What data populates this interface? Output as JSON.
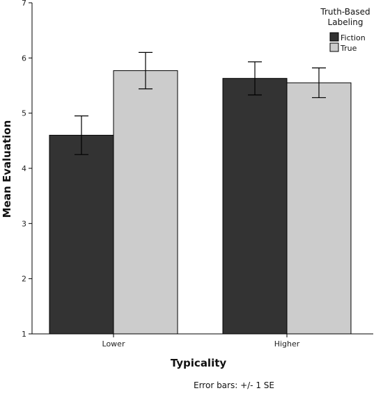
{
  "chart_data": {
    "type": "bar",
    "categories": [
      "Lower",
      "Higher"
    ],
    "series": [
      {
        "name": "Fiction",
        "values": [
          4.6,
          5.63
        ],
        "error": [
          0.35,
          0.3
        ],
        "color": "#333333"
      },
      {
        "name": "True",
        "values": [
          5.77,
          5.55
        ],
        "error": [
          0.33,
          0.27
        ],
        "color": "#cccccc"
      }
    ],
    "xlabel": "Typicality",
    "ylabel": "Mean Evaluation",
    "ylim": [
      1,
      7
    ],
    "yticks": [
      "1",
      "2",
      "3",
      "4",
      "5",
      "6",
      "7"
    ],
    "legend_title_lines": [
      "Truth-Based",
      "Labeling"
    ],
    "legend_position": "top-right",
    "grid": false,
    "note": "Error bars: +/- 1 SE"
  }
}
